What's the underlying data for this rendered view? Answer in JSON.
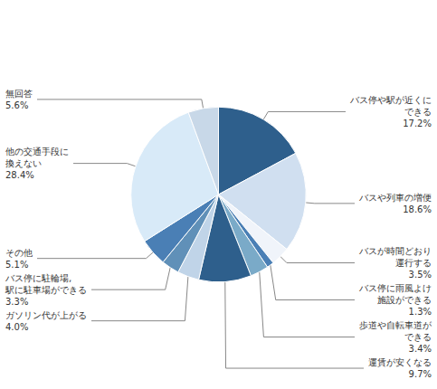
{
  "chart_data": {
    "type": "pie",
    "categories": [
      "バス停や駅が近くに\nできる\n17.2%",
      "バスや列車の増便\n18.6%",
      "バスが時間どおり\n運行する\n3.5%",
      "バス停に雨風よけ\n施設ができる\n1.3%",
      "歩道や自転車道が\nできる\n3.4%",
      "運賃が安くなる\n9.7%",
      "ガソリン代が上がる\n4.0%",
      "バス停に駐輪場,\n駅に駐車場ができる\n3.3%",
      "その他\n5.1%",
      "他の交通手段に\n換えない\n28.4%",
      "無回答\n5.6%"
    ],
    "values": [
      17.2,
      18.6,
      3.5,
      1.3,
      3.4,
      9.7,
      4.0,
      3.3,
      5.1,
      28.4,
      5.6
    ],
    "colors": [
      "#2e5f8c",
      "#d0dff0",
      "#f0f4fa",
      "#4a7fb5",
      "#7aaac8",
      "#2e5f8c",
      "#c0d4e8",
      "#6090b8",
      "#4a7fb5",
      "#d8eaf8",
      "#c8d8e8"
    ]
  }
}
